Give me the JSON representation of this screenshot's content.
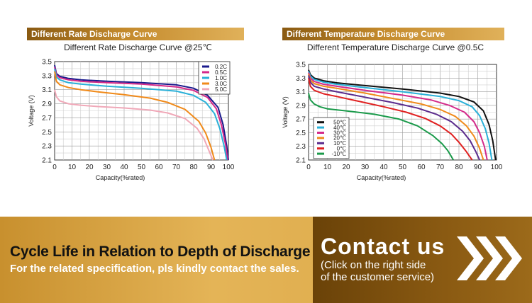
{
  "panels": {
    "left_header": "Different Rate Discharge Curve",
    "right_header": "Different Temperature Discharge Curve"
  },
  "chart_data": [
    {
      "type": "line",
      "title": "Different Rate Discharge Curve @25℃",
      "xlabel": "Capacity(%rated)",
      "ylabel": "Voltage (V)",
      "xlim": [
        0,
        100
      ],
      "ylim": [
        2.1,
        3.5
      ],
      "xticks": [
        "0",
        "10",
        "20",
        "30",
        "40",
        "50",
        "60",
        "70",
        "80",
        "90",
        "100"
      ],
      "yticks": [
        "2.1",
        "2.3",
        "2.5",
        "2.7",
        "2.9",
        "3.1",
        "3.3",
        "3.5"
      ],
      "grid": true,
      "legend_position": "top-right",
      "series": [
        {
          "name": "0.2C",
          "color": "#1a1a8c",
          "x": [
            0,
            1,
            3,
            8,
            15,
            30,
            50,
            70,
            80,
            88,
            94,
            97,
            99,
            100
          ],
          "y": [
            3.45,
            3.33,
            3.29,
            3.26,
            3.24,
            3.22,
            3.2,
            3.17,
            3.12,
            3.02,
            2.85,
            2.6,
            2.3,
            2.1
          ]
        },
        {
          "name": "0.5C",
          "color": "#d42a8a",
          "x": [
            0,
            1,
            3,
            8,
            15,
            30,
            50,
            70,
            80,
            88,
            93,
            96,
            98.5,
            99.5
          ],
          "y": [
            3.42,
            3.31,
            3.27,
            3.24,
            3.22,
            3.2,
            3.18,
            3.14,
            3.09,
            2.99,
            2.83,
            2.6,
            2.3,
            2.1
          ]
        },
        {
          "name": "1.0C",
          "color": "#2ab0d8",
          "x": [
            0,
            1,
            3,
            8,
            15,
            30,
            50,
            70,
            80,
            87,
            92,
            95,
            97.5,
            99
          ],
          "y": [
            3.4,
            3.28,
            3.24,
            3.2,
            3.18,
            3.15,
            3.12,
            3.08,
            3.02,
            2.92,
            2.76,
            2.55,
            2.3,
            2.1
          ]
        },
        {
          "name": "3.0C",
          "color": "#f08a1a",
          "x": [
            0,
            1,
            3,
            8,
            15,
            25,
            40,
            55,
            65,
            75,
            83,
            87,
            90,
            92
          ],
          "y": [
            3.36,
            3.22,
            3.17,
            3.13,
            3.1,
            3.07,
            3.03,
            2.98,
            2.92,
            2.82,
            2.65,
            2.48,
            2.28,
            2.1
          ]
        },
        {
          "name": "5.0C",
          "color": "#f0a8b8",
          "x": [
            0,
            1,
            3,
            8,
            15,
            25,
            40,
            55,
            65,
            75,
            82,
            86,
            89,
            91
          ],
          "y": [
            3.1,
            3.0,
            2.94,
            2.9,
            2.88,
            2.86,
            2.84,
            2.81,
            2.77,
            2.69,
            2.55,
            2.4,
            2.22,
            2.1
          ]
        }
      ]
    },
    {
      "type": "line",
      "title": "Different Temperature Discharge Curve @0.5C",
      "xlabel": "Capacity(%rated)",
      "ylabel": "Voltage (V)",
      "xlim": [
        0,
        100
      ],
      "ylim": [
        2.1,
        3.5
      ],
      "xticks": [
        "0",
        "10",
        "20",
        "30",
        "40",
        "50",
        "60",
        "70",
        "80",
        "90",
        "100"
      ],
      "yticks": [
        "2.1",
        "2.3",
        "2.5",
        "2.7",
        "2.9",
        "3.1",
        "3.3",
        "3.5"
      ],
      "grid": true,
      "legend_position": "bottom-left",
      "series": [
        {
          "name": "50℃",
          "color": "#111111",
          "x": [
            0,
            1,
            3,
            8,
            15,
            30,
            50,
            70,
            80,
            88,
            93,
            96,
            98,
            99.5
          ],
          "y": [
            3.42,
            3.35,
            3.3,
            3.26,
            3.23,
            3.19,
            3.14,
            3.08,
            3.03,
            2.95,
            2.82,
            2.62,
            2.38,
            2.1
          ]
        },
        {
          "name": "40℃",
          "color": "#2ab0d8",
          "x": [
            0,
            1,
            3,
            8,
            15,
            30,
            50,
            70,
            80,
            87,
            91,
            94,
            96,
            97.5
          ],
          "y": [
            3.4,
            3.33,
            3.28,
            3.24,
            3.21,
            3.16,
            3.1,
            3.03,
            2.97,
            2.88,
            2.75,
            2.56,
            2.35,
            2.1
          ]
        },
        {
          "name": "30℃",
          "color": "#d42a8a",
          "x": [
            0,
            1,
            3,
            8,
            15,
            30,
            50,
            65,
            75,
            83,
            88,
            91,
            93.5,
            95
          ],
          "y": [
            3.38,
            3.3,
            3.25,
            3.21,
            3.18,
            3.12,
            3.05,
            2.98,
            2.9,
            2.8,
            2.66,
            2.5,
            2.3,
            2.1
          ]
        },
        {
          "name": "20℃",
          "color": "#f08a1a",
          "x": [
            0,
            1,
            3,
            8,
            15,
            30,
            45,
            60,
            70,
            78,
            84,
            88,
            91,
            93
          ],
          "y": [
            3.36,
            3.27,
            3.22,
            3.18,
            3.15,
            3.08,
            3.0,
            2.92,
            2.84,
            2.74,
            2.6,
            2.45,
            2.27,
            2.1
          ]
        },
        {
          "name": "10℃",
          "color": "#5a2a8c",
          "x": [
            0,
            1,
            3,
            8,
            15,
            30,
            45,
            58,
            68,
            76,
            82,
            86,
            89,
            91
          ],
          "y": [
            3.34,
            3.24,
            3.18,
            3.14,
            3.1,
            3.02,
            2.94,
            2.86,
            2.77,
            2.66,
            2.52,
            2.38,
            2.22,
            2.1
          ]
        },
        {
          "name": "0℃",
          "color": "#e02020",
          "x": [
            0,
            1,
            3,
            8,
            15,
            25,
            40,
            52,
            62,
            70,
            76,
            80,
            84,
            87
          ],
          "y": [
            3.3,
            3.18,
            3.12,
            3.07,
            3.03,
            2.97,
            2.88,
            2.8,
            2.71,
            2.6,
            2.48,
            2.36,
            2.22,
            2.1
          ]
        },
        {
          "name": "-10℃",
          "color": "#1a9a4a",
          "x": [
            0,
            1,
            3,
            6,
            10,
            20,
            35,
            48,
            58,
            66,
            71,
            74,
            76,
            77
          ],
          "y": [
            3.08,
            2.98,
            2.92,
            2.88,
            2.85,
            2.82,
            2.77,
            2.7,
            2.6,
            2.46,
            2.34,
            2.24,
            2.15,
            2.1
          ]
        }
      ]
    }
  ],
  "banner": {
    "cycle_title": "Cycle Life in Relation to Depth of Discharge",
    "cycle_subtitle": "For the related specification, pls kindly contact the sales.",
    "contact_title": "Contact us",
    "contact_line1": "(Click on the right side",
    "contact_line2": "of the customer service)",
    "chevron_icon": "triple-chevron-right-icon"
  }
}
